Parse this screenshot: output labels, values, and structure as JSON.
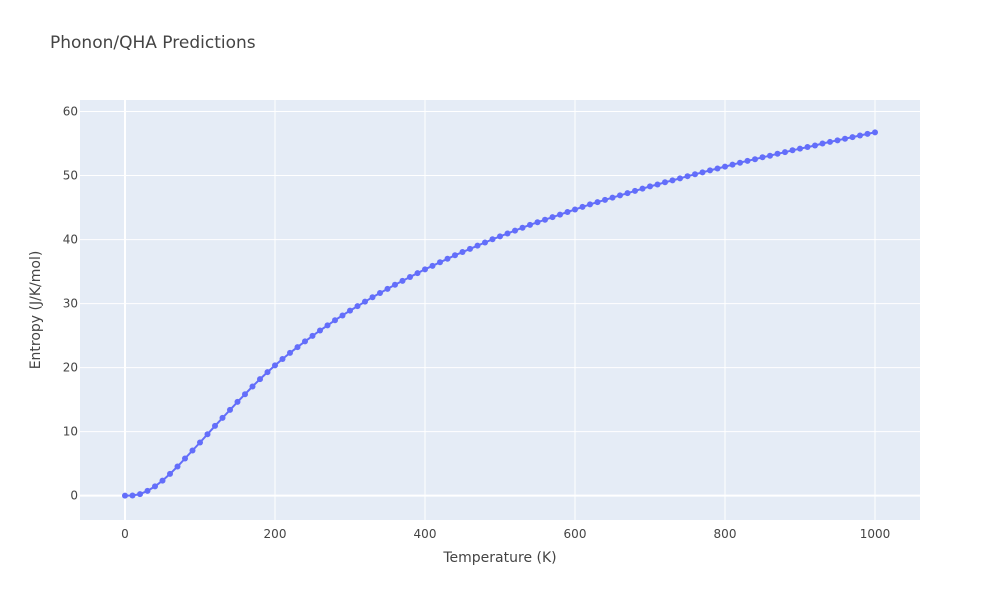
{
  "chart_data": {
    "type": "line",
    "title": "Phonon/QHA Predictions",
    "xlabel": "Temperature (K)",
    "ylabel": "Entropy (J/K/mol)",
    "xlim": [
      -60,
      1060
    ],
    "ylim": [
      -3.8,
      61.8
    ],
    "xticks": [
      0,
      200,
      400,
      600,
      800,
      1000
    ],
    "yticks": [
      0,
      10,
      20,
      30,
      40,
      50,
      60
    ],
    "grid": true,
    "legend": "none",
    "colors": {
      "plot_bg": "#e5ecf6",
      "series": "#636efa",
      "grid": "#ffffff"
    },
    "series": [
      {
        "mode": "lines+markers",
        "x": [
          0,
          10,
          20,
          30,
          40,
          50,
          60,
          70,
          80,
          90,
          100,
          110,
          120,
          130,
          140,
          150,
          160,
          170,
          180,
          190,
          200,
          210,
          220,
          230,
          240,
          250,
          260,
          270,
          280,
          290,
          300,
          310,
          320,
          330,
          340,
          350,
          360,
          370,
          380,
          390,
          400,
          410,
          420,
          430,
          440,
          450,
          460,
          470,
          480,
          490,
          500,
          510,
          520,
          530,
          540,
          550,
          560,
          570,
          580,
          590,
          600,
          610,
          620,
          630,
          640,
          650,
          660,
          670,
          680,
          690,
          700,
          710,
          720,
          730,
          740,
          750,
          760,
          770,
          780,
          790,
          800,
          810,
          820,
          830,
          840,
          850,
          860,
          870,
          880,
          890,
          900,
          910,
          920,
          930,
          940,
          950,
          960,
          970,
          980,
          990,
          1000
        ],
        "y": [
          0.0,
          0.02,
          0.25,
          0.75,
          1.45,
          2.35,
          3.4,
          4.55,
          5.8,
          7.05,
          8.3,
          9.6,
          10.9,
          12.15,
          13.4,
          14.65,
          15.85,
          17.05,
          18.2,
          19.3,
          20.35,
          21.35,
          22.3,
          23.2,
          24.1,
          24.95,
          25.8,
          26.6,
          27.4,
          28.15,
          28.9,
          29.6,
          30.3,
          31.0,
          31.65,
          32.3,
          32.95,
          33.55,
          34.15,
          34.75,
          35.35,
          35.9,
          36.45,
          37.0,
          37.55,
          38.05,
          38.55,
          39.05,
          39.55,
          40.05,
          40.5,
          40.95,
          41.4,
          41.85,
          42.3,
          42.7,
          43.1,
          43.5,
          43.9,
          44.3,
          44.7,
          45.1,
          45.5,
          45.85,
          46.2,
          46.55,
          46.9,
          47.25,
          47.6,
          47.95,
          48.3,
          48.6,
          48.95,
          49.25,
          49.55,
          49.9,
          50.2,
          50.5,
          50.8,
          51.1,
          51.4,
          51.7,
          52.0,
          52.3,
          52.55,
          52.85,
          53.1,
          53.4,
          53.65,
          53.95,
          54.2,
          54.45,
          54.7,
          55.0,
          55.25,
          55.5,
          55.75,
          56.0,
          56.25,
          56.5,
          56.75
        ]
      }
    ]
  }
}
